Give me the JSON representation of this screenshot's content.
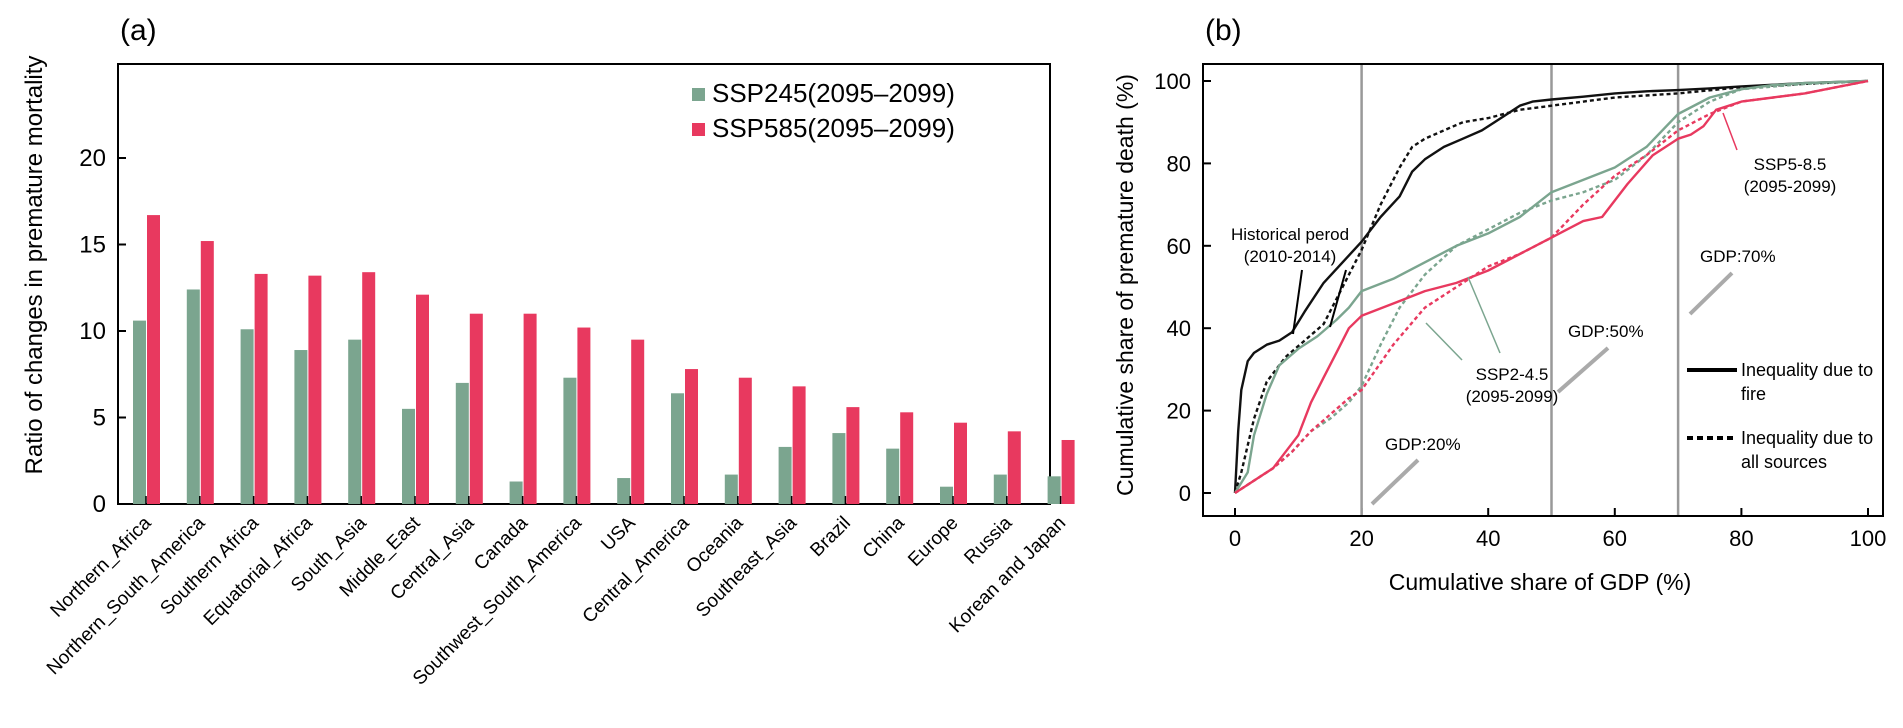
{
  "colors": {
    "ssp245": "#7ba58f",
    "ssp585": "#e8395f",
    "hist": "#111111",
    "gdpline": "#999999"
  },
  "panel_a": {
    "label": "(a)",
    "ylabel": "Ratio of changes in premature mortality"
  },
  "panel_b": {
    "label": "(b)",
    "ylabel": "Cumulative share of premature death (%)",
    "xlabel": "Cumulative share of GDP (%)",
    "ann_hist": [
      "Historical perod",
      "(2010-2014)"
    ],
    "ann_ssp245": [
      "SSP2-4.5",
      "(2095-2099)"
    ],
    "ann_ssp585": [
      "SSP5-8.5",
      "(2095-2099)"
    ],
    "gdp20": "GDP:20%",
    "gdp50": "GDP:50%",
    "gdp70": "GDP:70%",
    "legend_solid": [
      "Inequality due to",
      "fire"
    ],
    "legend_dotted": [
      "Inequality due to",
      "all sources"
    ]
  },
  "chart_data": [
    {
      "type": "bar",
      "title": "",
      "xlabel": "",
      "ylabel": "Ratio of changes in premature mortality",
      "ylim": [
        0,
        22
      ],
      "yticks": [
        0,
        5,
        10,
        15,
        20
      ],
      "legend_position": "top-right",
      "categories": [
        "Northern_Africa",
        "Northern_South_America",
        "Southern Africa",
        "Equatorial_Africa",
        "South_Asia",
        "Middle_East",
        "Central_Asia",
        "Canada",
        "Southwest_South_America",
        "USA",
        "Central_America",
        "Oceania",
        "Southeast_Asia",
        "Brazil",
        "China",
        "Europe",
        "Russia",
        "Korean and Japan"
      ],
      "series": [
        {
          "name": "SSP245",
          "legend": "(2095–2099)",
          "values": [
            10.6,
            12.4,
            10.1,
            8.9,
            9.5,
            5.5,
            7.0,
            1.3,
            7.3,
            1.5,
            6.4,
            1.7,
            3.3,
            4.1,
            3.2,
            1.0,
            1.7,
            1.6
          ]
        },
        {
          "name": "SSP585",
          "legend": "(2095–2099)",
          "values": [
            16.7,
            15.2,
            13.3,
            13.2,
            13.4,
            12.1,
            11.0,
            11.0,
            10.2,
            9.5,
            7.8,
            7.3,
            6.8,
            5.6,
            5.3,
            4.7,
            4.2,
            3.7
          ]
        }
      ]
    },
    {
      "type": "line",
      "title": "",
      "xlabel": "Cumulative share of GDP (%)",
      "ylabel": "Cumulative share of premature death (%)",
      "xlim": [
        -5,
        105
      ],
      "ylim": [
        -5,
        105
      ],
      "xticks": [
        0,
        20,
        40,
        60,
        80,
        100
      ],
      "yticks": [
        0,
        20,
        40,
        60,
        80,
        100
      ],
      "vlines": [
        20,
        50,
        70
      ],
      "series": [
        {
          "name": "Historical perod (2010-2014)",
          "source": "fire",
          "style": "solid",
          "color": "hist",
          "x": [
            0,
            0.5,
            1,
            2,
            3,
            5,
            7,
            9,
            11,
            14,
            17,
            20,
            23,
            26,
            28,
            30,
            33,
            36,
            39,
            41,
            43,
            45,
            47,
            50,
            55,
            60,
            65,
            70,
            75,
            80,
            90,
            100
          ],
          "y": [
            0,
            15,
            25,
            32,
            34,
            36,
            37,
            39,
            44,
            51,
            56,
            61,
            67,
            72,
            78,
            81,
            84,
            86,
            88,
            90,
            92,
            94,
            95,
            95.5,
            96.2,
            97,
            97.5,
            97.8,
            98.2,
            98.7,
            99.5,
            100
          ]
        },
        {
          "name": "Historical perod (2010-2014)",
          "source": "all",
          "style": "dotted",
          "color": "hist",
          "x": [
            0,
            1,
            3,
            5,
            8,
            11,
            14,
            17,
            20,
            23,
            26,
            28,
            30,
            33,
            36,
            40,
            45,
            50,
            60,
            70,
            80,
            90,
            100
          ],
          "y": [
            0,
            5,
            18,
            27,
            33,
            37,
            41,
            50,
            59,
            70,
            79,
            84,
            86,
            88,
            90,
            91,
            93,
            94,
            96,
            97,
            98.5,
            99.3,
            100
          ]
        },
        {
          "name": "SSP2-4.5",
          "source": "fire",
          "style": "solid",
          "color": "ssp245",
          "x": [
            0,
            2,
            3,
            5,
            7,
            10,
            13,
            16,
            18,
            20,
            25,
            30,
            35,
            40,
            45,
            50,
            55,
            60,
            65,
            70,
            75,
            80,
            85,
            90,
            100
          ],
          "y": [
            0,
            5,
            14,
            24,
            31,
            35,
            38,
            42,
            45,
            49,
            52,
            56,
            60,
            63,
            67,
            73,
            76,
            79,
            84,
            92,
            96,
            98,
            99,
            99.5,
            100
          ]
        },
        {
          "name": "SSP2-4.5",
          "source": "all",
          "style": "dotted",
          "color": "ssp245",
          "x": [
            0,
            3,
            6,
            9,
            12,
            15,
            18,
            20,
            23,
            26,
            30,
            35,
            40,
            45,
            50,
            55,
            60,
            65,
            70,
            75,
            80,
            90,
            100
          ],
          "y": [
            0,
            3,
            6,
            10,
            15,
            18,
            22,
            26,
            36,
            45,
            53,
            60,
            64,
            68,
            71,
            73,
            76,
            82,
            90,
            95,
            98,
            99.3,
            100
          ]
        },
        {
          "name": "SSP5-8.5",
          "source": "fire",
          "style": "solid",
          "color": "ssp585",
          "x": [
            0,
            2,
            4,
            6,
            8,
            10,
            12,
            14,
            16,
            18,
            20,
            25,
            30,
            35,
            40,
            45,
            50,
            55,
            58,
            62,
            66,
            70,
            72,
            74,
            76,
            80,
            85,
            90,
            95,
            100
          ],
          "y": [
            0,
            2,
            4,
            6,
            10,
            14,
            22,
            28,
            34,
            40,
            43,
            46,
            49,
            51,
            54,
            58,
            62,
            66,
            67,
            75,
            82,
            86,
            87,
            89,
            93,
            95,
            96,
            97,
            98.5,
            100
          ]
        },
        {
          "name": "SSP5-8.5",
          "source": "all",
          "style": "dotted",
          "color": "ssp585",
          "x": [
            0,
            3,
            6,
            9,
            12,
            15,
            18,
            20,
            25,
            30,
            35,
            40,
            45,
            50,
            55,
            60,
            65,
            70,
            75,
            80,
            90,
            100
          ],
          "y": [
            0,
            3,
            6,
            10,
            15,
            19,
            23,
            25,
            36,
            45,
            50,
            55,
            58,
            62,
            70,
            77,
            82,
            88,
            92,
            95,
            97,
            100
          ]
        }
      ]
    }
  ]
}
